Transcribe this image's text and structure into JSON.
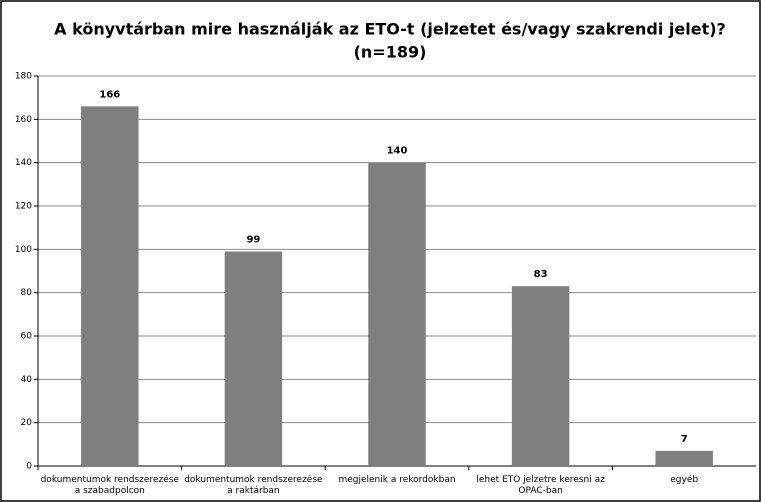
{
  "chart_data": {
    "type": "bar",
    "title": "A könyvtárban mire használják az ETO-t (jelzetet és/vagy szakrendi jelet)?",
    "subtitle": "(n=189)",
    "categories": [
      "dokumentumok rendszerezése a szabadpolcon",
      "dokumentumok rendszerezése a raktárban",
      "megjelenik a rekordokban",
      "lehet ETO jelzetre keresni az OPAC-ban",
      "egyéb"
    ],
    "values": [
      166,
      99,
      140,
      83,
      7
    ],
    "color": "#7f7f7f",
    "ylim": [
      0,
      180
    ],
    "yticks": [
      0,
      20,
      40,
      60,
      80,
      100,
      120,
      140,
      160,
      180
    ],
    "grid": true
  }
}
